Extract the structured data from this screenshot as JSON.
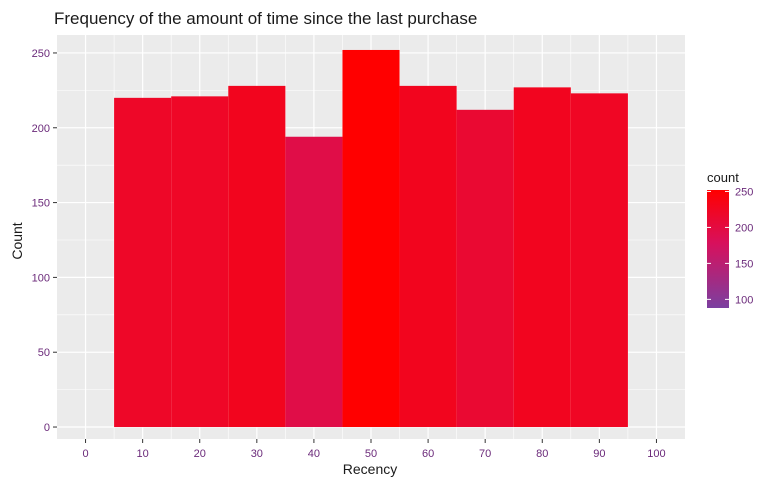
{
  "chart_data": {
    "type": "bar",
    "title": "Frequency of the amount of time since the last purchase",
    "xlabel": "Recency",
    "ylabel": "Count",
    "bins": [
      {
        "x_min": 5,
        "x_max": 15,
        "count": 220
      },
      {
        "x_min": 15,
        "x_max": 25,
        "count": 221
      },
      {
        "x_min": 25,
        "x_max": 35,
        "count": 228
      },
      {
        "x_min": 35,
        "x_max": 45,
        "count": 194
      },
      {
        "x_min": 45,
        "x_max": 55,
        "count": 252
      },
      {
        "x_min": 55,
        "x_max": 65,
        "count": 228
      },
      {
        "x_min": 65,
        "x_max": 75,
        "count": 212
      },
      {
        "x_min": 75,
        "x_max": 85,
        "count": 227
      },
      {
        "x_min": 85,
        "x_max": 95,
        "count": 223
      }
    ],
    "xlim": [
      -5,
      105
    ],
    "ylim": [
      -8,
      262
    ],
    "x_ticks": [
      "0",
      "10",
      "20",
      "30",
      "40",
      "50",
      "60",
      "70",
      "80",
      "90",
      "100"
    ],
    "x_tick_values": [
      0,
      10,
      20,
      30,
      40,
      50,
      60,
      70,
      80,
      90,
      100
    ],
    "y_ticks": [
      "0",
      "50",
      "100",
      "150",
      "200",
      "250"
    ],
    "y_tick_values": [
      0,
      50,
      100,
      150,
      200,
      250
    ],
    "grid": true,
    "panel_background": "#ebebeb",
    "grid_color": "#ffffff",
    "legend": {
      "title": "count",
      "position": "right",
      "labels": [
        "250",
        "200",
        "150",
        "100"
      ],
      "label_values": [
        250,
        200,
        150,
        100
      ],
      "range": [
        88,
        252
      ],
      "color_low": "#7b3fa0",
      "color_high": "#ff0000"
    }
  }
}
